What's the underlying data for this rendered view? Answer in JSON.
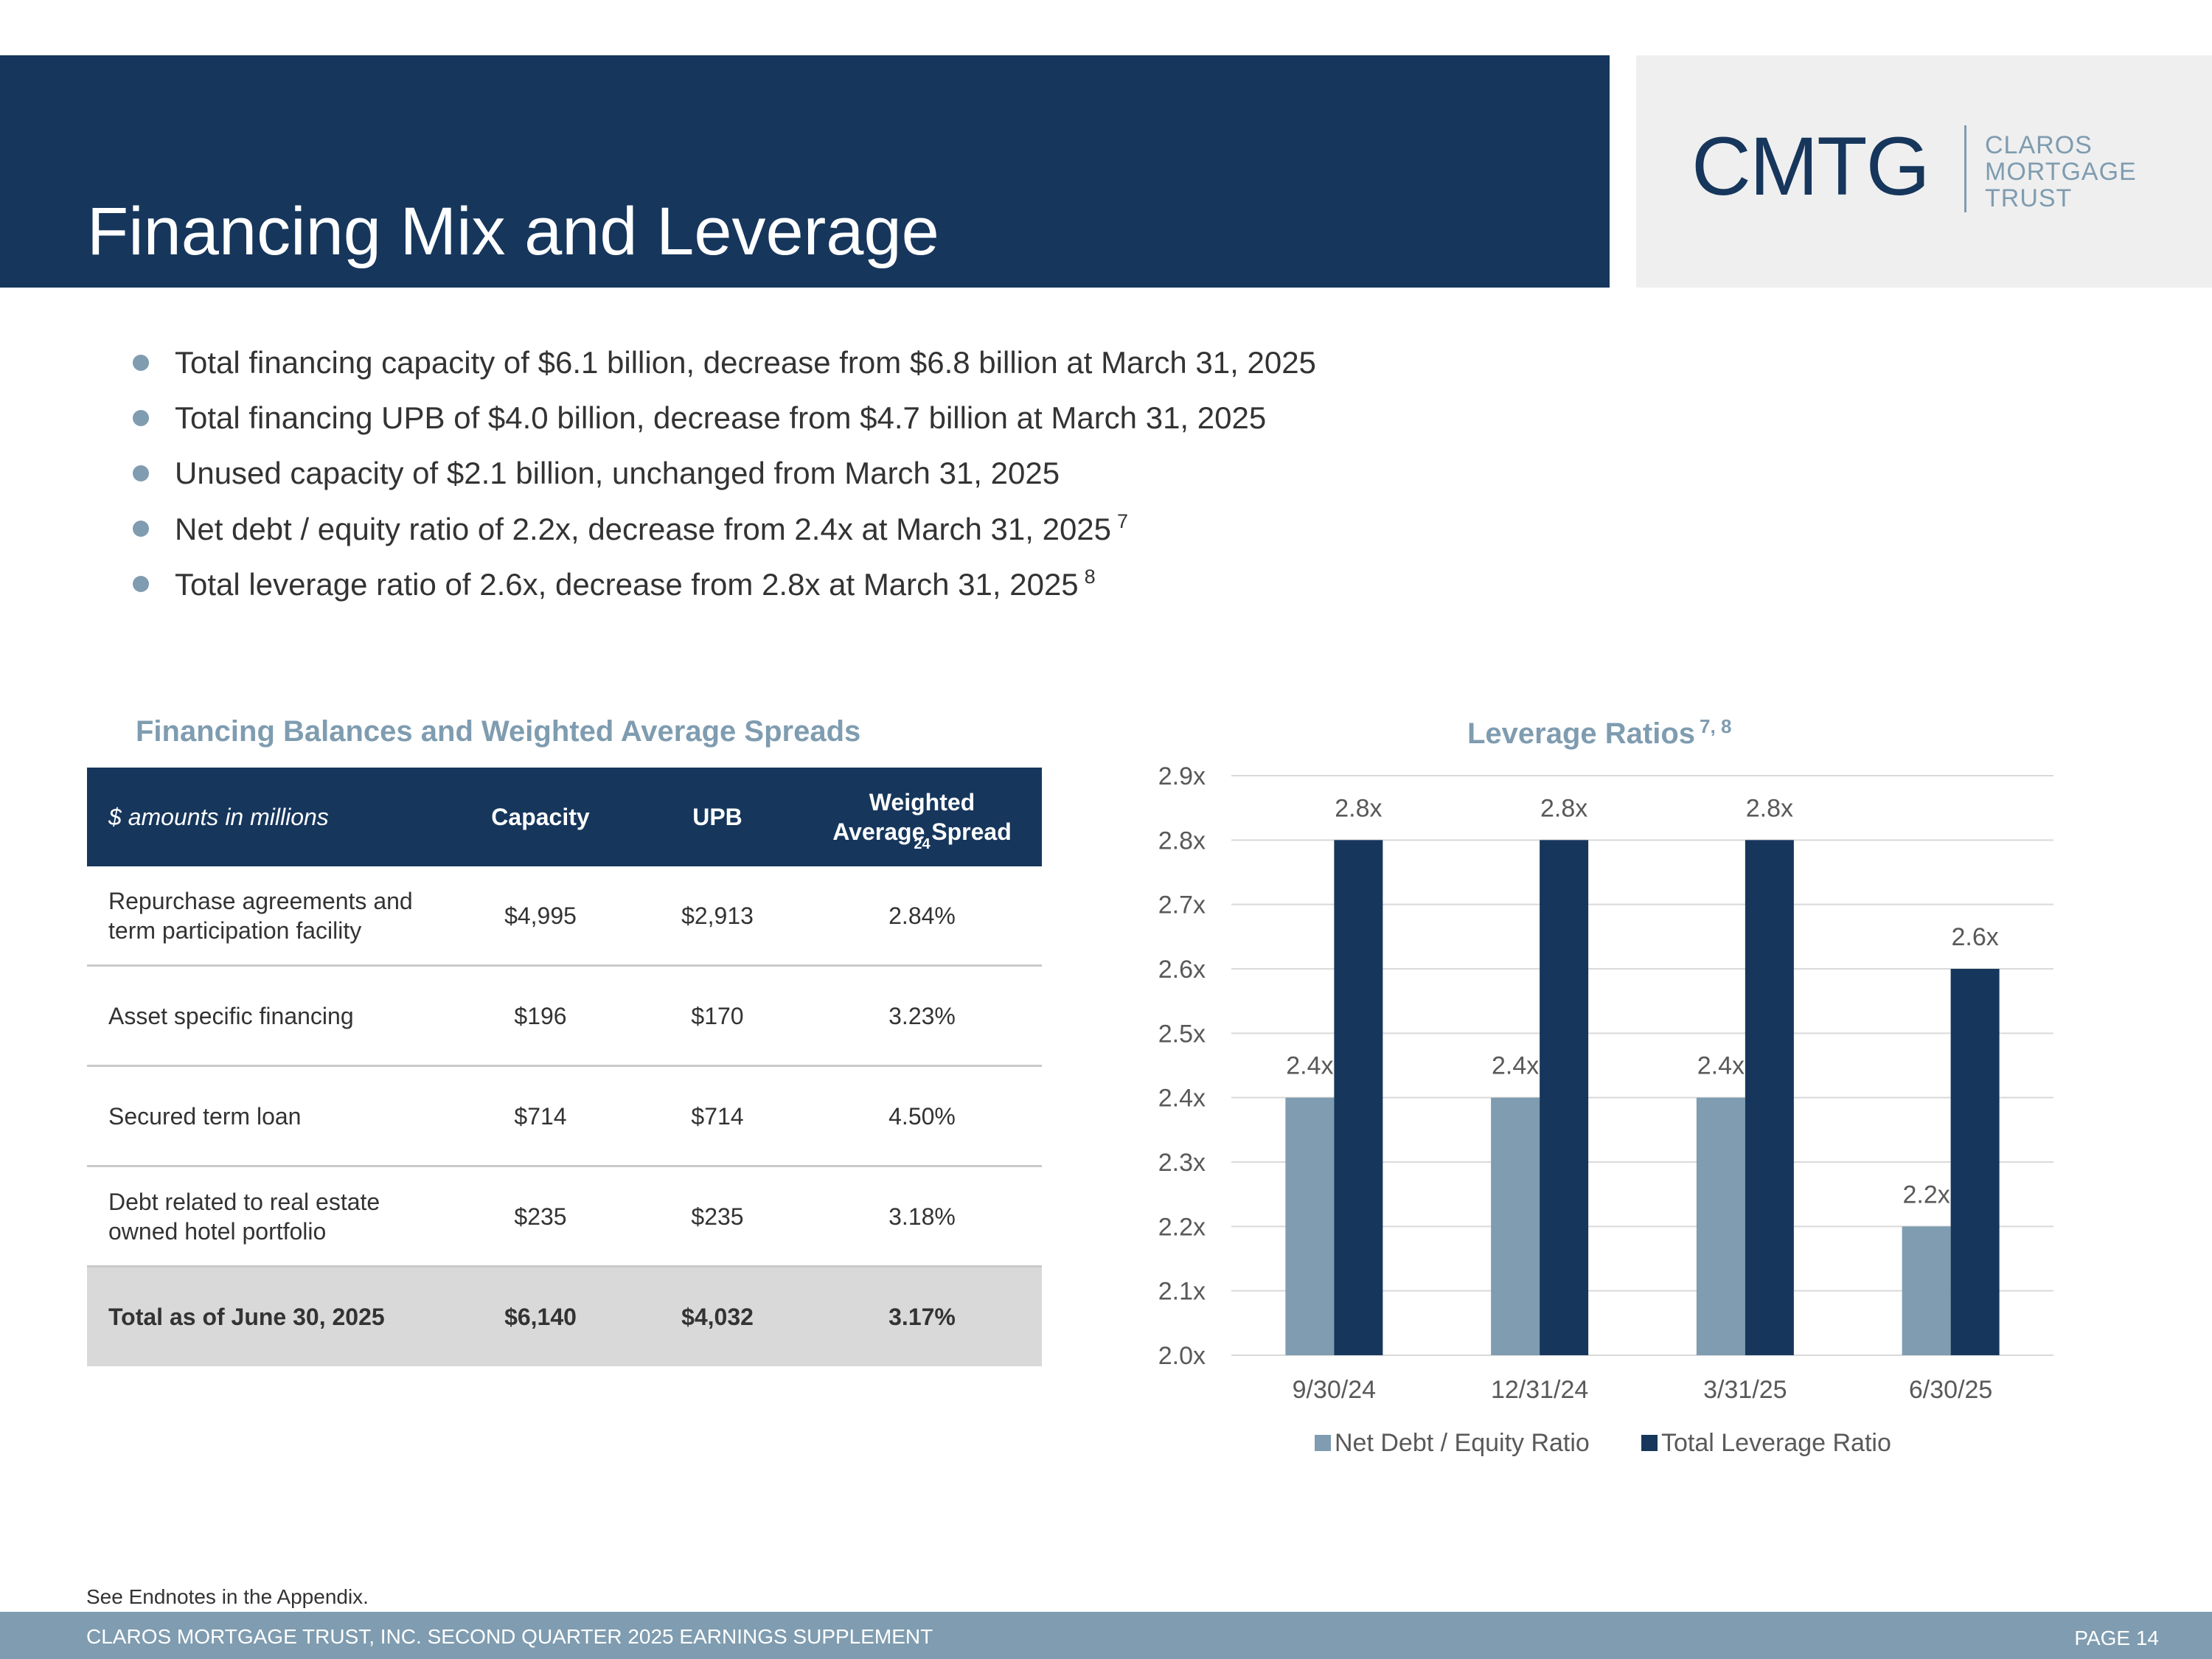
{
  "header": {
    "title": "Financing Mix and Leverage",
    "logo": {
      "mark": "CMTG",
      "lines": [
        "CLAROS",
        "MORTGAGE",
        "TRUST"
      ]
    }
  },
  "bullets": [
    {
      "text": "Total financing capacity of $6.1 billion, decrease from $6.8 billion at March 31, 2025",
      "sup": ""
    },
    {
      "text": "Total financing UPB of $4.0 billion, decrease from $4.7 billion at March 31, 2025",
      "sup": ""
    },
    {
      "text": "Unused capacity of $2.1 billion, unchanged from March 31, 2025",
      "sup": ""
    },
    {
      "text": "Net debt / equity ratio of 2.2x, decrease from 2.4x at March 31, 2025",
      "sup": "7"
    },
    {
      "text": "Total leverage ratio of 2.6x, decrease from 2.8x at March 31, 2025",
      "sup": "8"
    }
  ],
  "table": {
    "title": "Financing Balances and Weighted Average Spreads",
    "headers": {
      "label": "$ amounts in millions",
      "capacity": "Capacity",
      "upb": "UPB",
      "spread_line1": "Weighted",
      "spread_line2": "Average Spread",
      "spread_footnote": "24"
    },
    "rows": [
      {
        "label": "Repurchase agreements and term participation facility",
        "capacity": "$4,995",
        "upb": "$2,913",
        "spread": "2.84%"
      },
      {
        "label": "Asset specific financing",
        "capacity": "$196",
        "upb": "$170",
        "spread": "3.23%"
      },
      {
        "label": "Secured term loan",
        "capacity": "$714",
        "upb": "$714",
        "spread": "4.50%"
      },
      {
        "label": "Debt related to real estate owned hotel portfolio",
        "capacity": "$235",
        "upb": "$235",
        "spread": "3.18%"
      }
    ],
    "total": {
      "label": "Total as of June 30, 2025",
      "capacity": "$6,140",
      "upb": "$4,032",
      "spread": "3.17%"
    }
  },
  "chart_data": {
    "type": "bar",
    "title": "Leverage Ratios",
    "title_sup": "7, 8",
    "categories": [
      "9/30/24",
      "12/31/24",
      "3/31/25",
      "6/30/25"
    ],
    "series": [
      {
        "name": "Net Debt / Equity Ratio",
        "values": [
          2.4,
          2.4,
          2.4,
          2.2
        ],
        "labels": [
          "2.4x",
          "2.4x",
          "2.4x",
          "2.2x"
        ],
        "color": "#7f9cb0"
      },
      {
        "name": "Total Leverage Ratio",
        "values": [
          2.8,
          2.8,
          2.8,
          2.6
        ],
        "labels": [
          "2.8x",
          "2.8x",
          "2.8x",
          "2.6x"
        ],
        "color": "#16365c"
      }
    ],
    "ylim": [
      2.0,
      2.9
    ],
    "yticks": [
      "2.0x",
      "2.1x",
      "2.2x",
      "2.3x",
      "2.4x",
      "2.5x",
      "2.6x",
      "2.7x",
      "2.8x",
      "2.9x"
    ],
    "xlabel": "",
    "ylabel": "",
    "grid": true,
    "legend": "bottom"
  },
  "footer": {
    "endnote": "See Endnotes in the Appendix.",
    "left": "CLAROS MORTGAGE TRUST, INC. SECOND QUARTER 2025 EARNINGS SUPPLEMENT",
    "page": "PAGE 14"
  }
}
